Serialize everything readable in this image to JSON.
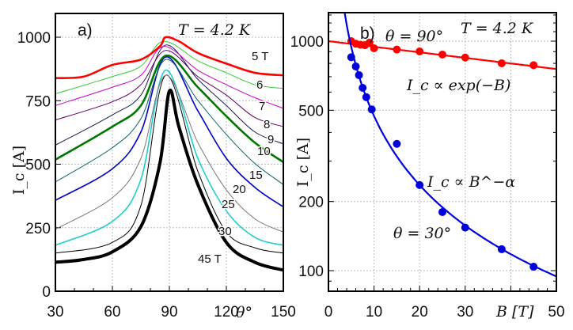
{
  "chart_data": [
    {
      "type": "line",
      "panel_label": "a)",
      "annotation": "T = 4.2 K",
      "xlabel": "θ°",
      "ylabel": "I_c [A]",
      "xlim": [
        30,
        150
      ],
      "ylim": [
        0,
        1100
      ],
      "xticks": [
        30,
        60,
        90,
        120,
        150
      ],
      "yticks": [
        0,
        250,
        500,
        750,
        1000
      ],
      "grid": true,
      "series": [
        {
          "name": "5 T",
          "color": "#ff0000",
          "width": "thick",
          "x": [
            30,
            45,
            60,
            75,
            85,
            88,
            95,
            105,
            120,
            135,
            150
          ],
          "y": [
            839,
            845,
            891,
            912,
            964,
            1000,
            984,
            938,
            896,
            860,
            850
          ]
        },
        {
          "name": "6",
          "color": "#33cc33",
          "width": "thin",
          "x": [
            30,
            60,
            75,
            87,
            105,
            120,
            135,
            150
          ],
          "y": [
            777,
            845,
            886,
            984,
            907,
            860,
            813,
            798
          ]
        },
        {
          "name": "7",
          "color": "#cc00cc",
          "width": "thin",
          "x": [
            30,
            60,
            75,
            87,
            105,
            120,
            135,
            150
          ],
          "y": [
            731,
            803,
            850,
            964,
            870,
            813,
            762,
            720
          ]
        },
        {
          "name": "8",
          "color": "#660066",
          "width": "thin",
          "x": [
            30,
            60,
            75,
            88,
            105,
            120,
            135,
            150
          ],
          "y": [
            674,
            746,
            813,
            948,
            845,
            772,
            684,
            648
          ]
        },
        {
          "name": "9",
          "color": "#1a1a4d",
          "width": "thin",
          "x": [
            30,
            60,
            75,
            88,
            105,
            120,
            135,
            150
          ],
          "y": [
            575,
            694,
            772,
            969,
            834,
            731,
            627,
            580
          ]
        },
        {
          "name": "10",
          "color": "#007700",
          "width": "thick",
          "x": [
            30,
            60,
            75,
            88,
            105,
            120,
            135,
            150
          ],
          "y": [
            518,
            648,
            731,
            927,
            803,
            689,
            585,
            508
          ]
        },
        {
          "color": "#006666",
          "width": "thin",
          "x": [
            30,
            60,
            75,
            88,
            105,
            120,
            135,
            150
          ],
          "y": [
            430,
            565,
            679,
            912,
            751,
            617,
            503,
            420
          ]
        },
        {
          "name": "15",
          "color": "#0000cc",
          "width": "mid",
          "x": [
            30,
            60,
            75,
            88,
            105,
            120,
            135,
            150
          ],
          "y": [
            358,
            482,
            627,
            922,
            710,
            523,
            409,
            332
          ]
        },
        {
          "name": "20",
          "color": "#777777",
          "width": "thin",
          "x": [
            30,
            60,
            75,
            88,
            105,
            120,
            135,
            150
          ],
          "y": [
            244,
            368,
            523,
            850,
            585,
            399,
            285,
            233
          ]
        },
        {
          "name": "25",
          "color": "#22cccc",
          "width": "mid",
          "x": [
            30,
            60,
            75,
            88,
            105,
            120,
            135,
            150
          ],
          "y": [
            181,
            275,
            440,
            870,
            523,
            316,
            212,
            181
          ]
        },
        {
          "name": "30",
          "color": "#000000",
          "width": "thin",
          "x": [
            30,
            60,
            75,
            88,
            105,
            120,
            135,
            150
          ],
          "y": [
            150,
            192,
            337,
            850,
            472,
            233,
            171,
            150
          ]
        },
        {
          "name": "45 T",
          "color": "#000000",
          "width": "heavy",
          "x": [
            30,
            45,
            60,
            75,
            85,
            90,
            95,
            105,
            120,
            135,
            150
          ],
          "y": [
            114,
            125,
            155,
            254,
            503,
            788,
            648,
            420,
            192,
            114,
            83
          ]
        }
      ]
    },
    {
      "type": "scatter",
      "panel_label": "b)",
      "annotation": "T = 4.2 K",
      "xlabel": "B [T]",
      "ylabel": "I_c [A]",
      "xlim": [
        0,
        50
      ],
      "ylim": [
        81,
        1330
      ],
      "yscale": "log",
      "xticks": [
        0,
        10,
        20,
        30,
        40,
        50
      ],
      "xtick_labels": [
        "0",
        "10",
        "20",
        "30",
        "",
        "50"
      ],
      "yticks": [
        100,
        200,
        500,
        1000
      ],
      "grid": true,
      "series": [
        {
          "name": "θ = 90°",
          "color": "#ff0000",
          "fit_label": "I_c ∝ exp(−B)",
          "fit": {
            "model": "exp",
            "I0": 1000,
            "I50": 756
          },
          "x": [
            5,
            6,
            7,
            8,
            9,
            10,
            15,
            20,
            25,
            30,
            38,
            45
          ],
          "y": [
            1000,
            975,
            965,
            960,
            985,
            931,
            919,
            902,
            874,
            848,
            801,
            786
          ]
        },
        {
          "name": "θ = 30°",
          "color": "#0000dd",
          "fit_label": "I_c ∝ B^−α",
          "fit": {
            "model": "power",
            "A": 4720,
            "alpha": 1.0
          },
          "x": [
            5,
            6,
            6.7,
            7.5,
            8.3,
            9.5,
            15,
            20,
            25,
            30,
            38,
            45
          ],
          "y": [
            851,
            776,
            711,
            626,
            570,
            504,
            357,
            236,
            180,
            154,
            124,
            104
          ]
        }
      ]
    }
  ]
}
